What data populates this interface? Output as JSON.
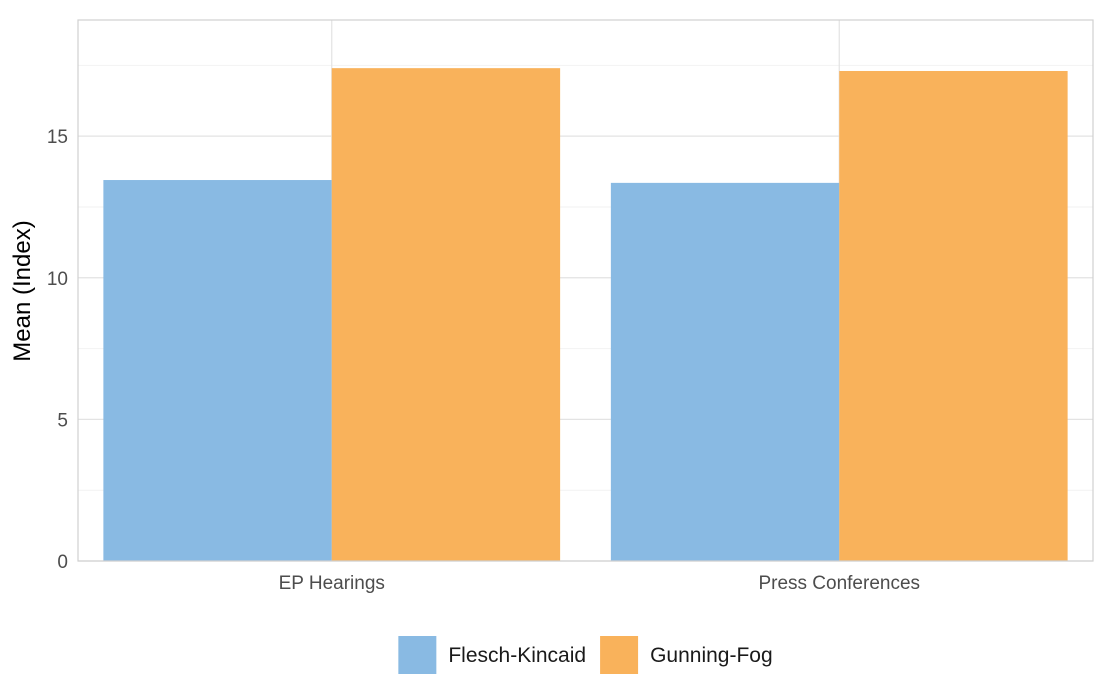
{
  "chart_data": {
    "type": "bar",
    "title": "",
    "xlabel": "",
    "ylabel": "Mean (Index)",
    "categories": [
      "EP Hearings",
      "Press Conferences"
    ],
    "series": [
      {
        "name": "Flesch-Kincaid",
        "color": "#89bae3",
        "values": [
          13.45,
          13.35
        ]
      },
      {
        "name": "Gunning-Fog",
        "color": "#f9b25b",
        "values": [
          17.4,
          17.3
        ]
      }
    ],
    "ylim": [
      0,
      19.1
    ],
    "yticks": [
      0,
      5,
      10,
      15
    ],
    "grid": true,
    "legend_position": "bottom"
  }
}
